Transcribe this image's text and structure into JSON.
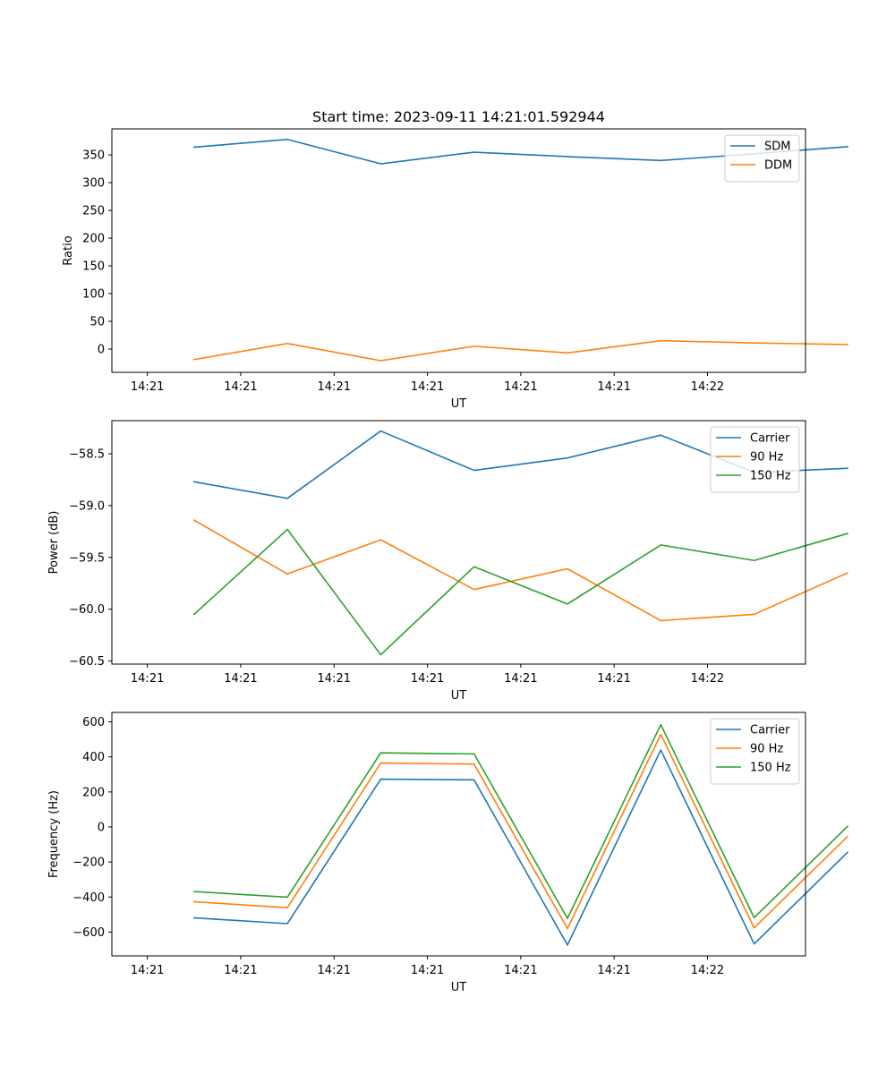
{
  "figure_title": "Start time: 2023-09-11 14:21:01.592944",
  "chart_data": [
    {
      "type": "line",
      "title": "Start time: 2023-09-11 14:21:01.592944",
      "xlabel": "UT",
      "ylabel": "Ratio",
      "x_tick_labels": [
        "14:21",
        "14:21",
        "14:21",
        "14:21",
        "14:21",
        "14:21",
        "14:22"
      ],
      "xlim": [
        -0.38,
        7.05
      ],
      "x": [
        0.5,
        1.5,
        2.5,
        3.5,
        4.5,
        5.5,
        6.5,
        7.5
      ],
      "ylim": [
        -42,
        397
      ],
      "y_ticks": [
        0,
        50,
        100,
        150,
        200,
        250,
        300,
        350
      ],
      "legend_position": "top-right",
      "series": [
        {
          "name": "SDM",
          "color": "#1f77b4",
          "values": [
            364,
            378,
            334,
            355,
            347,
            340,
            352,
            365
          ]
        },
        {
          "name": "DDM",
          "color": "#ff7f0e",
          "values": [
            -19,
            10,
            -21,
            5,
            -7,
            15,
            11,
            8
          ]
        }
      ]
    },
    {
      "type": "line",
      "title": "",
      "xlabel": "UT",
      "ylabel": "Power (dB)",
      "x_tick_labels": [
        "14:21",
        "14:21",
        "14:21",
        "14:21",
        "14:21",
        "14:21",
        "14:22"
      ],
      "xlim": [
        -0.38,
        7.05
      ],
      "x": [
        0.5,
        1.5,
        2.5,
        3.5,
        4.5,
        5.5,
        6.5,
        7.5
      ],
      "ylim": [
        -60.53,
        -58.18
      ],
      "y_ticks": [
        -60.5,
        -60.0,
        -59.5,
        -59.0,
        -58.5
      ],
      "y_tick_labels": [
        "−60.5",
        "−60.0",
        "−59.5",
        "−59.0",
        "−58.5"
      ],
      "legend_position": "top-right",
      "series": [
        {
          "name": "Carrier",
          "color": "#1f77b4",
          "values": [
            -58.77,
            -58.93,
            -58.28,
            -58.66,
            -58.54,
            -58.32,
            -58.68,
            -58.64
          ]
        },
        {
          "name": "90 Hz",
          "color": "#ff7f0e",
          "values": [
            -59.14,
            -59.66,
            -59.33,
            -59.81,
            -59.61,
            -60.11,
            -60.05,
            -59.65
          ]
        },
        {
          "name": "150 Hz",
          "color": "#2ca02c",
          "values": [
            -60.05,
            -59.23,
            -60.44,
            -59.59,
            -59.95,
            -59.38,
            -59.53,
            -59.27
          ]
        }
      ]
    },
    {
      "type": "line",
      "title": "",
      "xlabel": "UT",
      "ylabel": "Frequency (Hz)",
      "x_tick_labels": [
        "14:21",
        "14:21",
        "14:21",
        "14:21",
        "14:21",
        "14:21",
        "14:22"
      ],
      "xlim": [
        -0.38,
        7.05
      ],
      "x": [
        0.5,
        1.5,
        2.5,
        3.5,
        4.5,
        5.5,
        6.5,
        7.5
      ],
      "ylim": [
        -736,
        654
      ],
      "y_ticks": [
        -600,
        -400,
        -200,
        0,
        200,
        400,
        600
      ],
      "y_tick_labels": [
        "−600",
        "−400",
        "−200",
        "0",
        "200",
        "400",
        "600"
      ],
      "legend_position": "top-right",
      "series": [
        {
          "name": "Carrier",
          "color": "#1f77b4",
          "values": [
            -519,
            -552,
            273,
            269,
            -674,
            439,
            -668,
            -145
          ]
        },
        {
          "name": "90 Hz",
          "color": "#ff7f0e",
          "values": [
            -427,
            -461,
            365,
            359,
            -580,
            529,
            -576,
            -55
          ]
        },
        {
          "name": "150 Hz",
          "color": "#2ca02c",
          "values": [
            -369,
            -401,
            423,
            417,
            -522,
            584,
            -518,
            3
          ]
        }
      ]
    }
  ]
}
